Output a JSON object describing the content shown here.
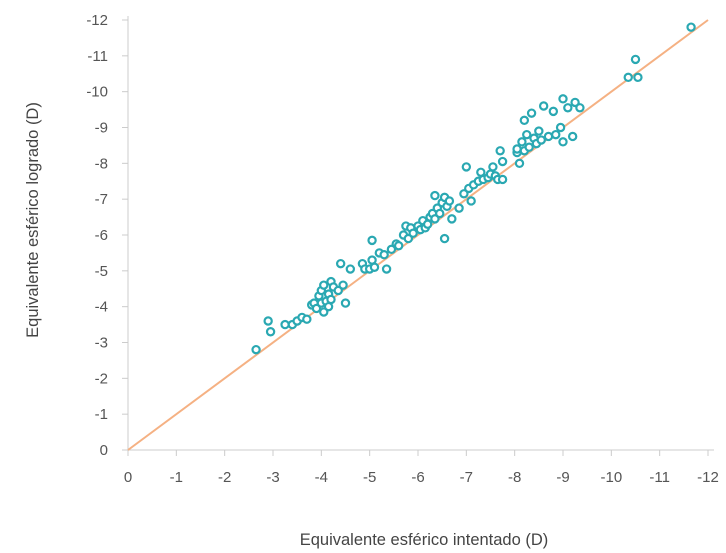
{
  "chart_data": {
    "type": "scatter",
    "title": "",
    "xlabel": "Equivalente esférico intentado (D)",
    "ylabel": "Equivalente esférico logrado (D)",
    "xlim": [
      0,
      -12
    ],
    "ylim": [
      0,
      -12
    ],
    "x_ticks": [
      "0",
      "-1",
      "-2",
      "-3",
      "-4",
      "-5",
      "-6",
      "-7",
      "-8",
      "-9",
      "-10",
      "-11",
      "-12"
    ],
    "y_ticks": [
      "0",
      "-1",
      "-2",
      "-3",
      "-4",
      "-5",
      "-6",
      "-7",
      "-8",
      "-9",
      "-10",
      "-11",
      "-12"
    ],
    "grid": false,
    "reference_line": {
      "from": [
        0,
        0
      ],
      "to": [
        -12,
        -12
      ],
      "color": "#f5b183"
    },
    "marker_color": "#2aa8b2",
    "axis_color": "#cccccc",
    "series": [
      {
        "points": [
          [
            -2.65,
            -2.8
          ],
          [
            -2.9,
            -3.6
          ],
          [
            -2.95,
            -3.3
          ],
          [
            -3.25,
            -3.5
          ],
          [
            -3.4,
            -3.5
          ],
          [
            -3.5,
            -3.6
          ],
          [
            -3.6,
            -3.7
          ],
          [
            -3.7,
            -3.65
          ],
          [
            -3.8,
            -4.05
          ],
          [
            -3.85,
            -4.1
          ],
          [
            -3.9,
            -3.95
          ],
          [
            -3.95,
            -4.3
          ],
          [
            -4.0,
            -4.45
          ],
          [
            -4.0,
            -4.1
          ],
          [
            -4.05,
            -4.6
          ],
          [
            -4.05,
            -3.85
          ],
          [
            -4.1,
            -4.15
          ],
          [
            -4.15,
            -4.35
          ],
          [
            -4.15,
            -4.0
          ],
          [
            -4.2,
            -4.7
          ],
          [
            -4.2,
            -4.2
          ],
          [
            -4.25,
            -4.55
          ],
          [
            -4.35,
            -4.45
          ],
          [
            -4.4,
            -5.2
          ],
          [
            -4.45,
            -4.6
          ],
          [
            -4.5,
            -4.1
          ],
          [
            -4.6,
            -5.05
          ],
          [
            -4.85,
            -5.2
          ],
          [
            -4.9,
            -5.05
          ],
          [
            -5.0,
            -5.05
          ],
          [
            -5.05,
            -5.3
          ],
          [
            -5.05,
            -5.85
          ],
          [
            -5.1,
            -5.1
          ],
          [
            -5.2,
            -5.5
          ],
          [
            -5.3,
            -5.45
          ],
          [
            -5.35,
            -5.05
          ],
          [
            -5.45,
            -5.6
          ],
          [
            -5.55,
            -5.75
          ],
          [
            -5.6,
            -5.7
          ],
          [
            -5.7,
            -6.0
          ],
          [
            -5.75,
            -6.25
          ],
          [
            -5.8,
            -5.9
          ],
          [
            -5.85,
            -6.2
          ],
          [
            -5.9,
            -6.05
          ],
          [
            -6.0,
            -6.25
          ],
          [
            -6.05,
            -6.15
          ],
          [
            -6.1,
            -6.4
          ],
          [
            -6.15,
            -6.2
          ],
          [
            -6.2,
            -6.3
          ],
          [
            -6.25,
            -6.5
          ],
          [
            -6.3,
            -6.6
          ],
          [
            -6.35,
            -6.45
          ],
          [
            -6.35,
            -7.1
          ],
          [
            -6.4,
            -6.75
          ],
          [
            -6.45,
            -6.6
          ],
          [
            -6.5,
            -6.9
          ],
          [
            -6.55,
            -7.05
          ],
          [
            -6.55,
            -5.9
          ],
          [
            -6.6,
            -6.8
          ],
          [
            -6.65,
            -6.95
          ],
          [
            -6.7,
            -6.45
          ],
          [
            -6.85,
            -6.75
          ],
          [
            -6.95,
            -7.15
          ],
          [
            -7.0,
            -7.9
          ],
          [
            -7.05,
            -7.3
          ],
          [
            -7.1,
            -6.95
          ],
          [
            -7.15,
            -7.4
          ],
          [
            -7.25,
            -7.5
          ],
          [
            -7.3,
            -7.75
          ],
          [
            -7.35,
            -7.55
          ],
          [
            -7.45,
            -7.6
          ],
          [
            -7.5,
            -7.7
          ],
          [
            -7.55,
            -7.9
          ],
          [
            -7.6,
            -7.65
          ],
          [
            -7.65,
            -7.55
          ],
          [
            -7.7,
            -8.35
          ],
          [
            -7.75,
            -7.55
          ],
          [
            -7.75,
            -8.05
          ],
          [
            -8.05,
            -8.3
          ],
          [
            -8.05,
            -8.4
          ],
          [
            -8.1,
            -8.0
          ],
          [
            -8.15,
            -8.6
          ],
          [
            -8.2,
            -9.2
          ],
          [
            -8.2,
            -8.35
          ],
          [
            -8.25,
            -8.8
          ],
          [
            -8.3,
            -8.45
          ],
          [
            -8.35,
            -9.4
          ],
          [
            -8.4,
            -8.7
          ],
          [
            -8.45,
            -8.55
          ],
          [
            -8.5,
            -8.9
          ],
          [
            -8.55,
            -8.65
          ],
          [
            -8.6,
            -9.6
          ],
          [
            -8.7,
            -8.75
          ],
          [
            -8.8,
            -9.45
          ],
          [
            -8.85,
            -8.8
          ],
          [
            -8.95,
            -9.0
          ],
          [
            -9.0,
            -9.8
          ],
          [
            -9.0,
            -8.6
          ],
          [
            -9.1,
            -9.55
          ],
          [
            -9.2,
            -8.75
          ],
          [
            -9.25,
            -9.7
          ],
          [
            -9.35,
            -9.55
          ],
          [
            -10.35,
            -10.4
          ],
          [
            -10.5,
            -10.9
          ],
          [
            -10.55,
            -10.4
          ],
          [
            -11.65,
            -11.8
          ]
        ]
      }
    ]
  }
}
